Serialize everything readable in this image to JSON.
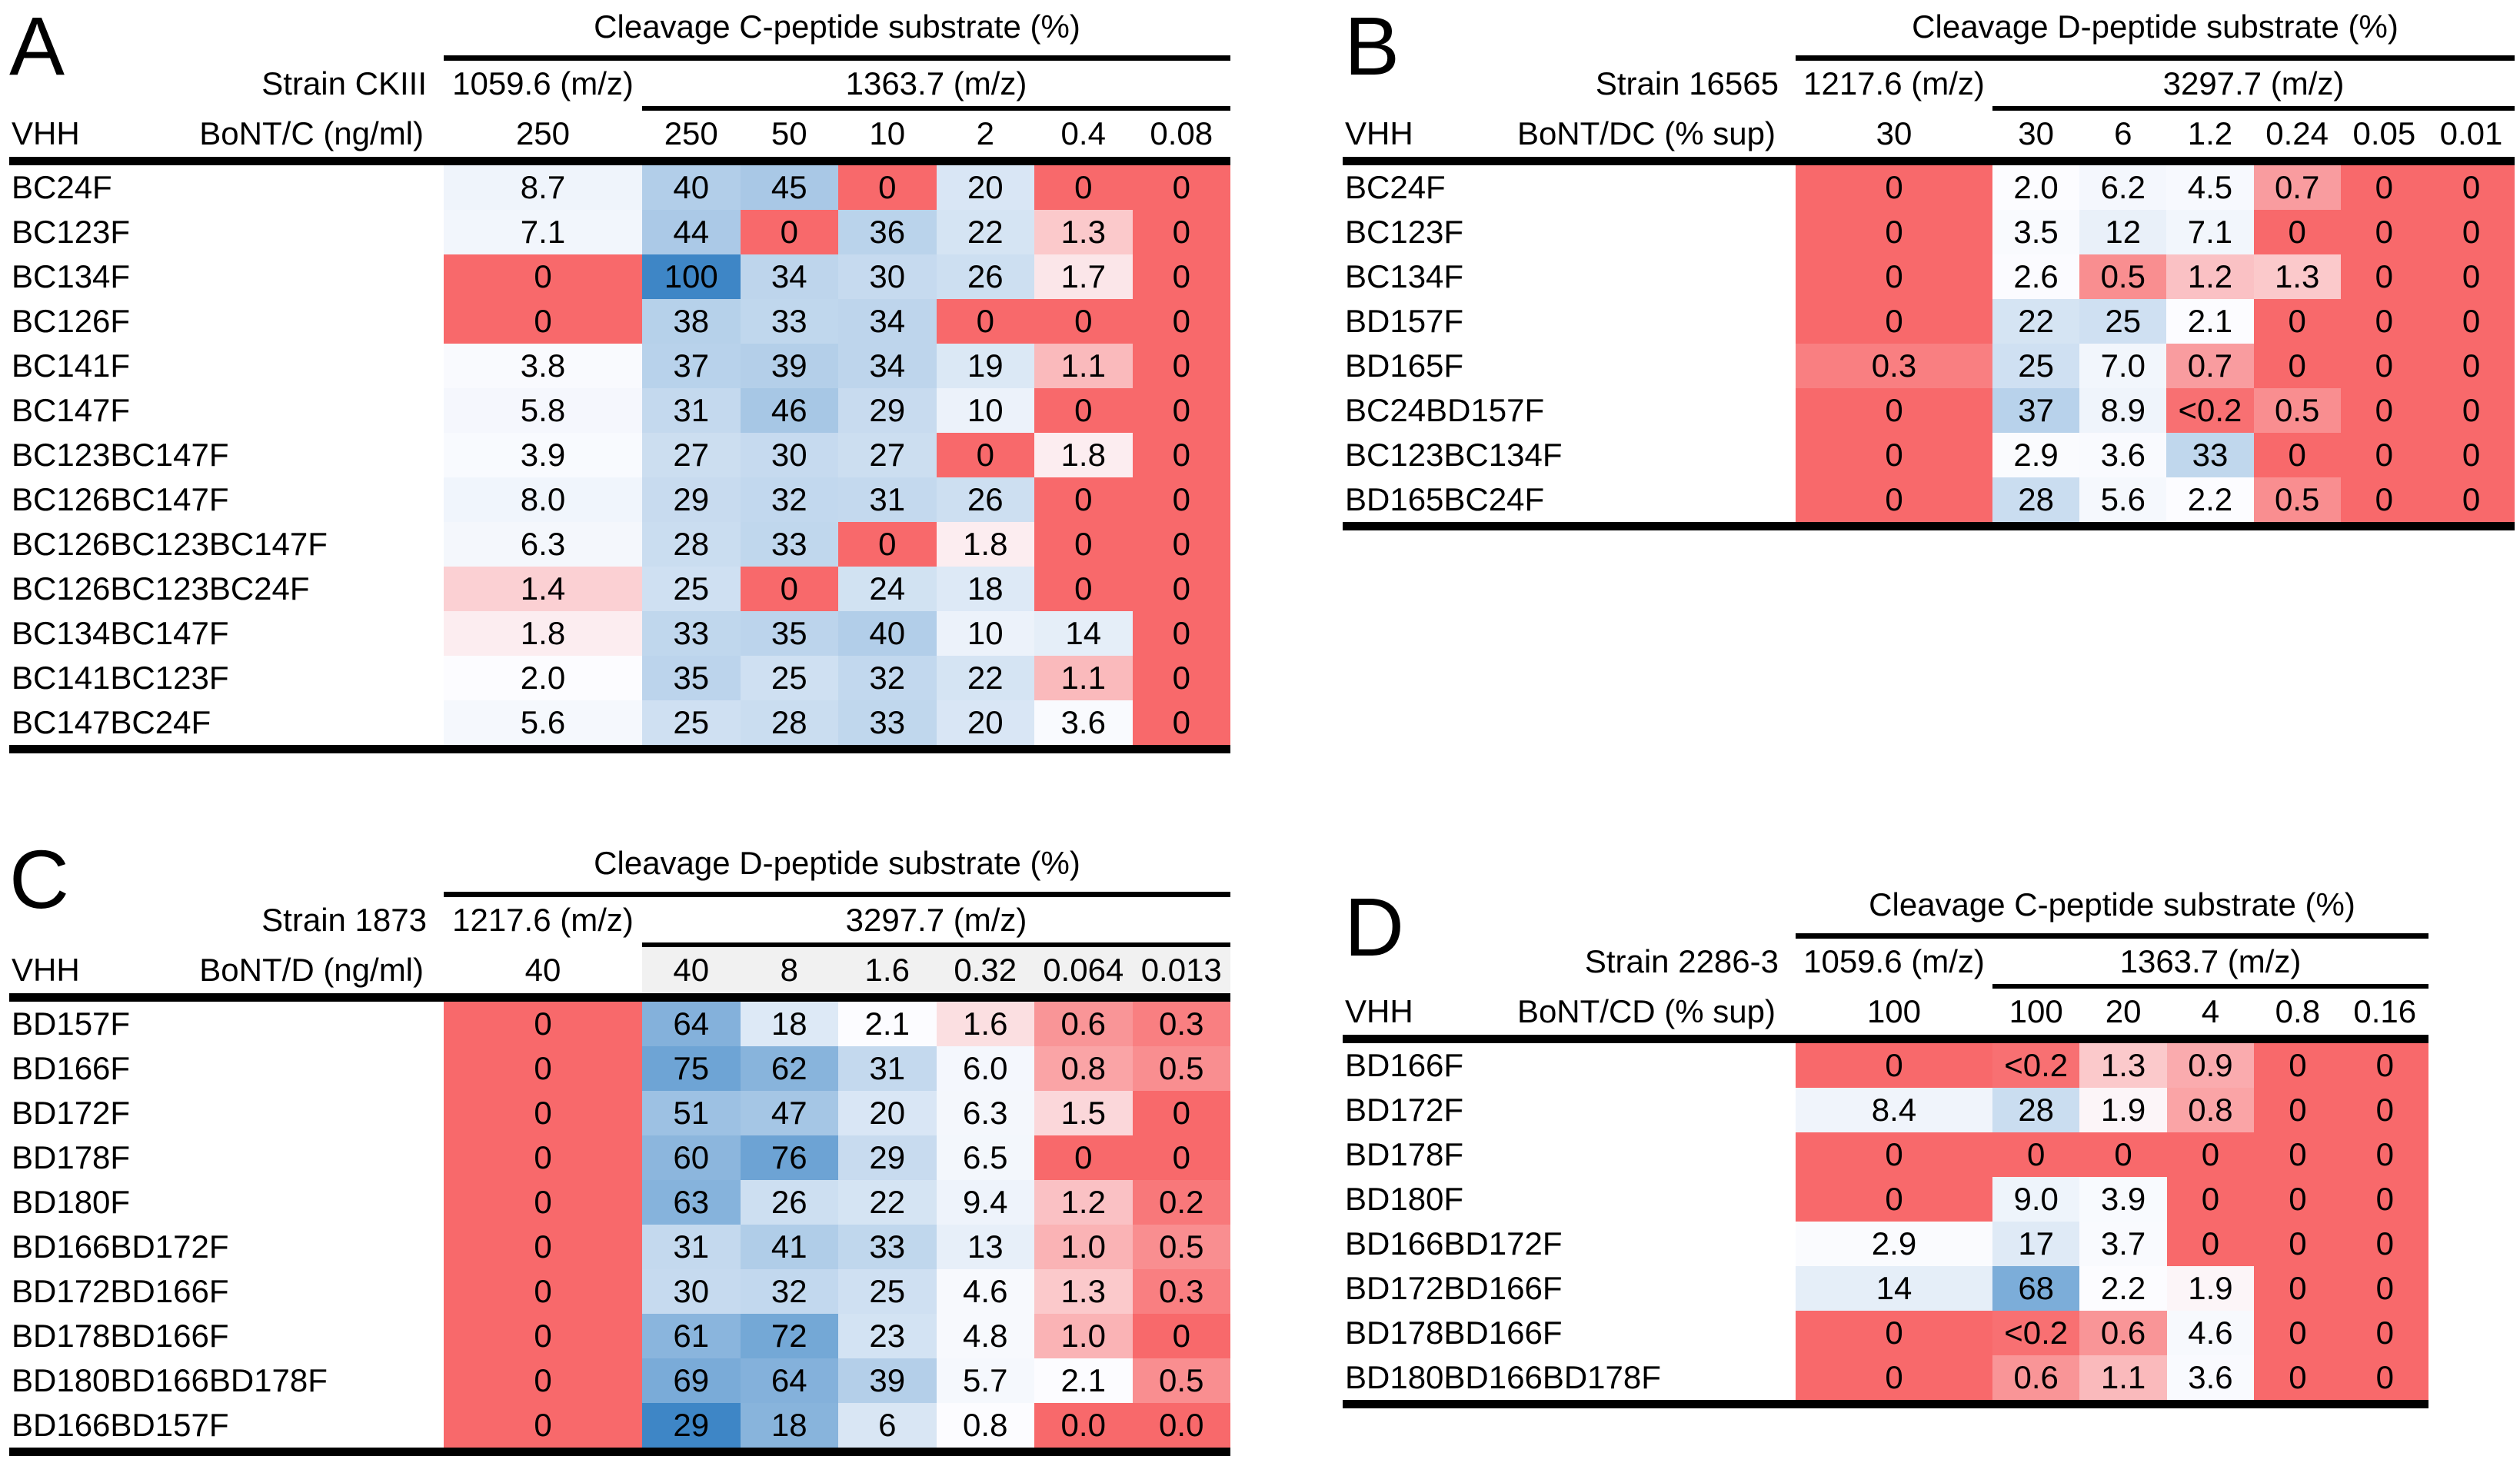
{
  "figure": {
    "background": "#ffffff"
  },
  "color_scale": {
    "min_value": 0,
    "mid_value": 2,
    "max_value": 100,
    "min_color": "#F8696B",
    "mid_color": "#FCFCFF",
    "max_color": "#3E86C6",
    "header_shade_color": "#F1F1F1"
  },
  "chart_data": [
    {
      "type": "heatmap",
      "panel": "A",
      "title": "Cleavage C-peptide substrate (%)",
      "strain": "Strain CKIII",
      "row_header": "VHH",
      "col_header": "BoNT/C (ng/ml)",
      "single_mz": "1059.6 (m/z)",
      "group_mz": "1363.7 (m/z)",
      "single_conc": "250",
      "group_concs": [
        "250",
        "50",
        "10",
        "2",
        "0.4",
        "0.08"
      ],
      "header_shaded": false,
      "rows": [
        {
          "vhh": "BC24F",
          "values": [
            "8.7",
            "40",
            "45",
            "0",
            "20",
            "0",
            "0"
          ]
        },
        {
          "vhh": "BC123F",
          "values": [
            "7.1",
            "44",
            "0",
            "36",
            "22",
            "1.3",
            "0"
          ]
        },
        {
          "vhh": "BC134F",
          "values": [
            "0",
            "100",
            "34",
            "30",
            "26",
            "1.7",
            "0"
          ]
        },
        {
          "vhh": "BC126F",
          "values": [
            "0",
            "38",
            "33",
            "34",
            "0",
            "0",
            "0"
          ]
        },
        {
          "vhh": "BC141F",
          "values": [
            "3.8",
            "37",
            "39",
            "34",
            "19",
            "1.1",
            "0"
          ]
        },
        {
          "vhh": "BC147F",
          "values": [
            "5.8",
            "31",
            "46",
            "29",
            "10",
            "0",
            "0"
          ]
        },
        {
          "vhh": "BC123BC147F",
          "values": [
            "3.9",
            "27",
            "30",
            "27",
            "0",
            "1.8",
            "0"
          ]
        },
        {
          "vhh": "BC126BC147F",
          "values": [
            "8.0",
            "29",
            "32",
            "31",
            "26",
            "0",
            "0"
          ]
        },
        {
          "vhh": "BC126BC123BC147F",
          "values": [
            "6.3",
            "28",
            "33",
            "0",
            "1.8",
            "0",
            "0"
          ]
        },
        {
          "vhh": "BC126BC123BC24F",
          "values": [
            "1.4",
            "25",
            "0",
            "24",
            "18",
            "0",
            "0"
          ]
        },
        {
          "vhh": "BC134BC147F",
          "values": [
            "1.8",
            "33",
            "35",
            "40",
            "10",
            "14",
            "0"
          ]
        },
        {
          "vhh": "BC141BC123F",
          "values": [
            "2.0",
            "35",
            "25",
            "32",
            "22",
            "1.1",
            "0"
          ]
        },
        {
          "vhh": "BC147BC24F",
          "values": [
            "5.6",
            "25",
            "28",
            "33",
            "20",
            "3.6",
            "0"
          ]
        }
      ]
    },
    {
      "type": "heatmap",
      "panel": "B",
      "title": "Cleavage D-peptide substrate (%)",
      "strain": "Strain 16565",
      "row_header": "VHH",
      "col_header": "BoNT/DC (% sup)",
      "single_mz": "1217.6 (m/z)",
      "group_mz": "3297.7 (m/z)",
      "single_conc": "30",
      "group_concs": [
        "30",
        "6",
        "1.2",
        "0.24",
        "0.05",
        "0.01"
      ],
      "header_shaded": false,
      "rows": [
        {
          "vhh": "BC24F",
          "values": [
            "0",
            "2.0",
            "6.2",
            "4.5",
            "0.7",
            "0",
            "0"
          ]
        },
        {
          "vhh": "BC123F",
          "values": [
            "0",
            "3.5",
            "12",
            "7.1",
            "0",
            "0",
            "0"
          ]
        },
        {
          "vhh": "BC134F",
          "values": [
            "0",
            "2.6",
            "0.5",
            "1.2",
            "1.3",
            "0",
            "0"
          ]
        },
        {
          "vhh": "BD157F",
          "values": [
            "0",
            "22",
            "25",
            "2.1",
            "0",
            "0",
            "0"
          ]
        },
        {
          "vhh": "BD165F",
          "values": [
            "0.3",
            "25",
            "7.0",
            "0.7",
            "0",
            "0",
            "0"
          ]
        },
        {
          "vhh": "BC24BD157F",
          "values": [
            "0",
            "37",
            "8.9",
            "<0.2",
            "0.5",
            "0",
            "0"
          ]
        },
        {
          "vhh": "BC123BC134F",
          "values": [
            "0",
            "2.9",
            "3.6",
            "33",
            "0",
            "0",
            "0"
          ]
        },
        {
          "vhh": "BD165BC24F",
          "values": [
            "0",
            "28",
            "5.6",
            "2.2",
            "0.5",
            "0",
            "0"
          ]
        }
      ]
    },
    {
      "type": "heatmap",
      "panel": "C",
      "title": "Cleavage D-peptide substrate (%)",
      "strain": "Strain 1873",
      "row_header": "VHH",
      "col_header": "BoNT/D (ng/ml)",
      "single_mz": "1217.6 (m/z)",
      "group_mz": "3297.7 (m/z)",
      "single_conc": "40",
      "group_concs": [
        "40",
        "8",
        "1.6",
        "0.32",
        "0.064",
        "0.013"
      ],
      "header_shaded": true,
      "rows": [
        {
          "vhh": "BD157F",
          "values": [
            "0",
            "64",
            "18",
            "2.1",
            "1.6",
            "0.6",
            "0.3"
          ]
        },
        {
          "vhh": "BD166F",
          "values": [
            "0",
            "75",
            "62",
            "31",
            "6.0",
            "0.8",
            "0.5"
          ]
        },
        {
          "vhh": "BD172F",
          "values": [
            "0",
            "51",
            "47",
            "20",
            "6.3",
            "1.5",
            "0"
          ]
        },
        {
          "vhh": "BD178F",
          "values": [
            "0",
            "60",
            "76",
            "29",
            "6.5",
            "0",
            "0"
          ]
        },
        {
          "vhh": "BD180F",
          "values": [
            "0",
            "63",
            "26",
            "22",
            "9.4",
            "1.2",
            "0.2"
          ]
        },
        {
          "vhh": "BD166BD172F",
          "values": [
            "0",
            "31",
            "41",
            "33",
            "13",
            "1.0",
            "0.5"
          ]
        },
        {
          "vhh": "BD172BD166F",
          "values": [
            "0",
            "30",
            "32",
            "25",
            "4.6",
            "1.3",
            "0.3"
          ]
        },
        {
          "vhh": "BD178BD166F",
          "values": [
            "0",
            "61",
            "72",
            "23",
            "4.8",
            "1.0",
            "0"
          ]
        },
        {
          "vhh": "BD180BD166BD178F",
          "values": [
            "0",
            "69",
            "64",
            "39",
            "5.7",
            "2.1",
            "0.5"
          ]
        },
        {
          "vhh": "BD166BD157F",
          "values": [
            "0",
            "29",
            "18",
            "6",
            "0.8",
            "0.0",
            "0.0"
          ],
          "scale": {
            "min_value": 0,
            "mid_value": 0.8,
            "max_value": 29
          }
        }
      ]
    },
    {
      "type": "heatmap",
      "panel": "D",
      "title": "Cleavage C-peptide substrate (%)",
      "strain": "Strain 2286-3",
      "row_header": "VHH",
      "col_header": "BoNT/CD (% sup)",
      "single_mz": "1059.6 (m/z)",
      "group_mz": "1363.7 (m/z)",
      "single_conc": "100",
      "group_concs": [
        "100",
        "20",
        "4",
        "0.8",
        "0.16"
      ],
      "header_shaded": false,
      "rows": [
        {
          "vhh": "BD166F",
          "values": [
            "0",
            "<0.2",
            "1.3",
            "0.9",
            "0",
            "0"
          ]
        },
        {
          "vhh": "BD172F",
          "values": [
            "8.4",
            "28",
            "1.9",
            "0.8",
            "0",
            "0"
          ]
        },
        {
          "vhh": "BD178F",
          "values": [
            "0",
            "0",
            "0",
            "0",
            "0",
            "0"
          ]
        },
        {
          "vhh": "BD180F",
          "values": [
            "0",
            "9.0",
            "3.9",
            "0",
            "0",
            "0"
          ]
        },
        {
          "vhh": "BD166BD172F",
          "values": [
            "2.9",
            "17",
            "3.7",
            "0",
            "0",
            "0"
          ]
        },
        {
          "vhh": "BD172BD166F",
          "values": [
            "14",
            "68",
            "2.2",
            "1.9",
            "0",
            "0"
          ]
        },
        {
          "vhh": "BD178BD166F",
          "values": [
            "0",
            "<0.2",
            "0.6",
            "4.6",
            "0",
            "0"
          ]
        },
        {
          "vhh": "BD180BD166BD178F",
          "values": [
            "0",
            "0.6",
            "1.1",
            "3.6",
            "0",
            "0"
          ]
        }
      ]
    }
  ]
}
